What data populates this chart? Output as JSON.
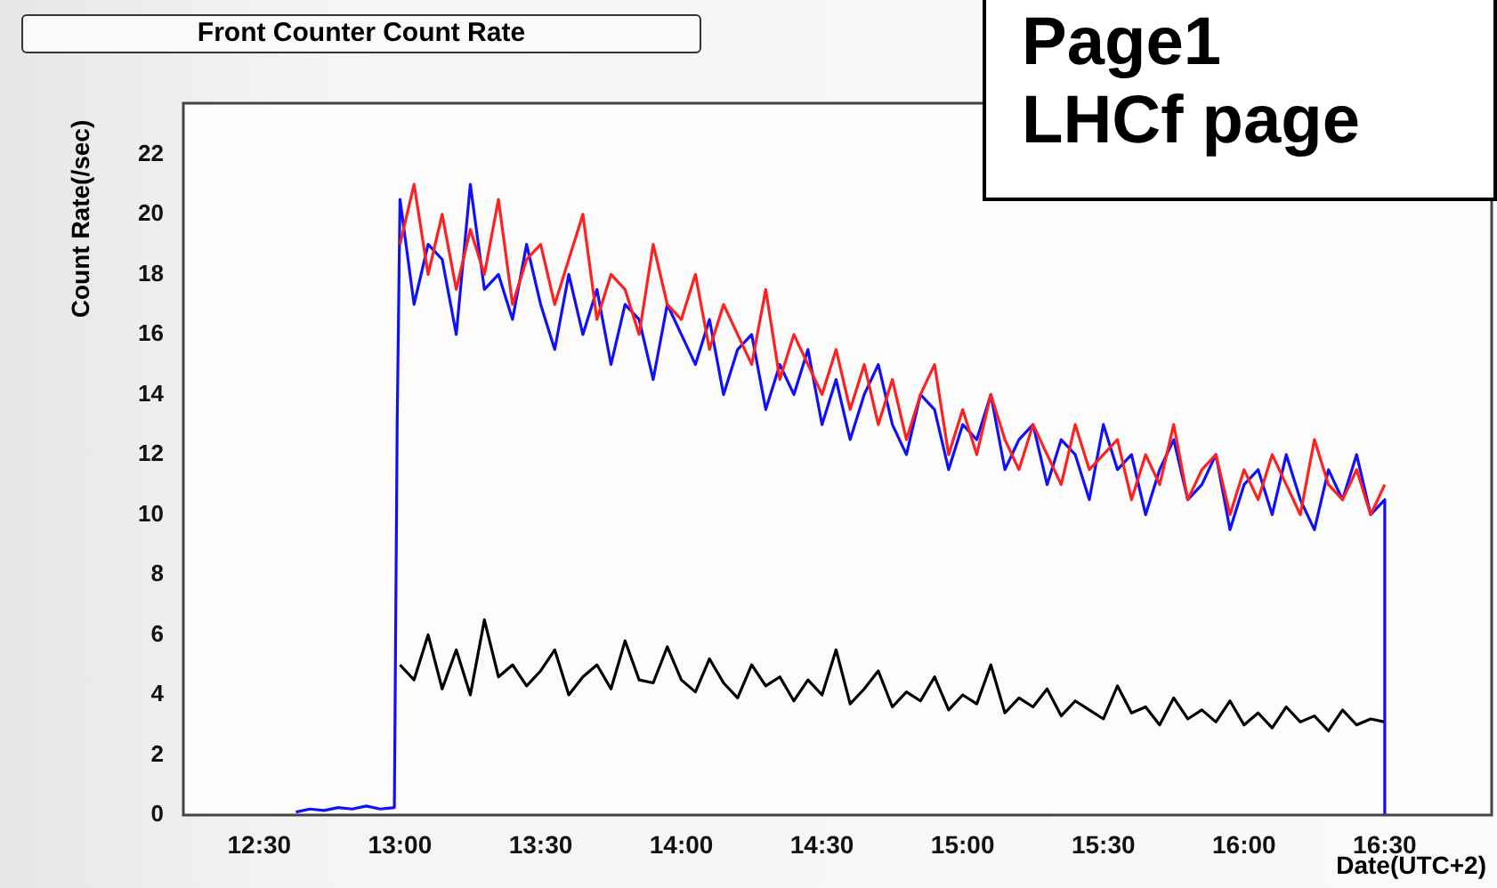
{
  "chart_data": {
    "type": "line",
    "title": "Front Counter Count Rate",
    "xlabel": "Date(UTC+2)",
    "ylabel": "Count Rate(/sec)",
    "annotations": [
      "Page1",
      "LHCf page"
    ],
    "x": [
      13.0,
      13.05,
      13.1,
      13.15,
      13.2,
      13.25,
      13.3,
      13.35,
      13.4,
      13.45,
      13.5,
      13.55,
      13.6,
      13.65,
      13.7,
      13.75,
      13.8,
      13.85,
      13.9,
      13.95,
      14.0,
      14.05,
      14.1,
      14.15,
      14.2,
      14.25,
      14.3,
      14.35,
      14.4,
      14.45,
      14.5,
      14.55,
      14.6,
      14.65,
      14.7,
      14.75,
      14.8,
      14.85,
      14.9,
      14.95,
      15.0,
      15.05,
      15.1,
      15.15,
      15.2,
      15.25,
      15.3,
      15.35,
      15.4,
      15.45,
      15.5,
      15.55,
      15.6,
      15.65,
      15.7,
      15.75,
      15.8,
      15.85,
      15.9,
      15.95,
      16.0,
      16.05,
      16.1,
      16.15,
      16.2,
      16.25,
      16.3,
      16.35,
      16.4,
      16.45,
      16.5
    ],
    "series": [
      {
        "color": "#ff2020",
        "values": [
          19,
          21,
          18,
          20,
          17.5,
          19.5,
          18,
          20.5,
          17,
          18.5,
          19,
          17,
          18.5,
          20,
          16.5,
          18,
          17.5,
          16,
          19,
          17,
          16.5,
          18,
          15.5,
          17,
          16,
          15,
          17.5,
          14.5,
          16,
          15,
          14,
          15.5,
          13.5,
          15,
          13,
          14.5,
          12.5,
          14,
          15,
          12,
          13.5,
          12,
          14,
          12.5,
          11.5,
          13,
          12,
          11,
          13,
          11.5,
          12,
          12.5,
          10.5,
          12,
          11,
          13,
          10.5,
          11.5,
          12,
          10,
          11.5,
          10.5,
          12,
          11,
          10,
          12.5,
          11,
          10.5,
          11.5,
          10,
          11
        ]
      },
      {
        "color": "#1010ff",
        "x": [
          12.63,
          12.68,
          12.73,
          12.78,
          12.83,
          12.88,
          12.93,
          12.98,
          12.99,
          13.0,
          13.05,
          13.1,
          13.15,
          13.2,
          13.25,
          13.3,
          13.35,
          13.4,
          13.45,
          13.5,
          13.55,
          13.6,
          13.65,
          13.7,
          13.75,
          13.8,
          13.85,
          13.9,
          13.95,
          14.0,
          14.05,
          14.1,
          14.15,
          14.2,
          14.25,
          14.3,
          14.35,
          14.4,
          14.45,
          14.5,
          14.55,
          14.6,
          14.65,
          14.7,
          14.75,
          14.8,
          14.85,
          14.9,
          14.95,
          15.0,
          15.05,
          15.1,
          15.15,
          15.2,
          15.25,
          15.3,
          15.35,
          15.4,
          15.45,
          15.5,
          15.55,
          15.6,
          15.65,
          15.7,
          15.75,
          15.8,
          15.85,
          15.9,
          15.95,
          16.0,
          16.05,
          16.1,
          16.15,
          16.2,
          16.25,
          16.3,
          16.35,
          16.4,
          16.45,
          16.5,
          16.5
        ],
        "values": [
          0.1,
          0.2,
          0.15,
          0.25,
          0.2,
          0.3,
          0.2,
          0.25,
          13,
          20.5,
          17,
          19,
          18.5,
          16,
          21,
          17.5,
          18,
          16.5,
          19,
          17,
          15.5,
          18,
          16,
          17.5,
          15,
          17,
          16.5,
          14.5,
          17,
          16,
          15,
          16.5,
          14,
          15.5,
          16,
          13.5,
          15,
          14,
          15.5,
          13,
          14.5,
          12.5,
          14,
          15,
          13,
          12,
          14,
          13.5,
          11.5,
          13,
          12.5,
          14,
          11.5,
          12.5,
          13,
          11,
          12.5,
          12,
          10.5,
          13,
          11.5,
          12,
          10,
          11.5,
          12.5,
          10.5,
          11,
          12,
          9.5,
          11,
          11.5,
          10,
          12,
          10.5,
          9.5,
          11.5,
          10.5,
          12,
          10,
          10.5,
          0
        ]
      },
      {
        "color": "#000000",
        "values": [
          5,
          4.5,
          6,
          4.2,
          5.5,
          4,
          6.5,
          4.6,
          5,
          4.3,
          4.8,
          5.5,
          4,
          4.6,
          5,
          4.2,
          5.8,
          4.5,
          4.4,
          5.6,
          4.5,
          4.1,
          5.2,
          4.4,
          3.9,
          5,
          4.3,
          4.6,
          3.8,
          4.5,
          4,
          5.5,
          3.7,
          4.2,
          4.8,
          3.6,
          4.1,
          3.8,
          4.6,
          3.5,
          4,
          3.7,
          5,
          3.4,
          3.9,
          3.6,
          4.2,
          3.3,
          3.8,
          3.5,
          3.2,
          4.3,
          3.4,
          3.6,
          3,
          3.9,
          3.2,
          3.5,
          3.1,
          3.8,
          3,
          3.4,
          2.9,
          3.6,
          3.1,
          3.3,
          2.8,
          3.5,
          3,
          3.2,
          3.1
        ]
      }
    ],
    "xlim": [
      12.23,
      16.88
    ],
    "xticks": [
      {
        "value": 12.5,
        "label": "12:30"
      },
      {
        "value": 13,
        "label": "13:00"
      },
      {
        "value": 13.5,
        "label": "13:30"
      },
      {
        "value": 14,
        "label": "14:00"
      },
      {
        "value": 14.5,
        "label": "14:30"
      },
      {
        "value": 15,
        "label": "15:00"
      },
      {
        "value": 15.5,
        "label": "15:30"
      },
      {
        "value": 16,
        "label": "16:00"
      },
      {
        "value": 16.5,
        "label": "16:30"
      }
    ],
    "ylim": [
      0,
      23.7
    ],
    "yticks": [
      0,
      2,
      4,
      6,
      8,
      10,
      12,
      14,
      16,
      18,
      20,
      22
    ],
    "grid": false,
    "legend": false,
    "marker": "none",
    "line_style": "solid"
  }
}
